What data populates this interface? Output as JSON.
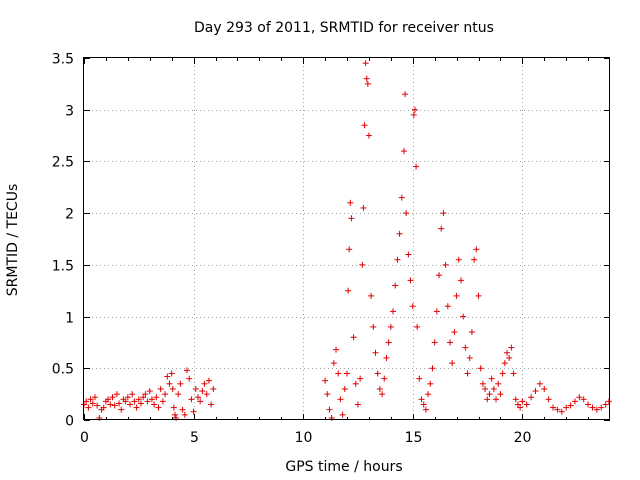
{
  "chart_data": {
    "type": "scatter",
    "title": "Day 293 of 2011, SRMTID for receiver ntus",
    "xlabel": "GPS time / hours",
    "ylabel": "SRMTID / TECUs",
    "xlim": [
      0,
      24
    ],
    "ylim": [
      0,
      3.5
    ],
    "grid": true,
    "marker": "+",
    "marker_color": "#e00000",
    "x_ticks": [
      0,
      5,
      10,
      15,
      20
    ],
    "x_tick_labels": [
      "0",
      "5",
      "10",
      "15",
      "20"
    ],
    "y_ticks": [
      0,
      0.5,
      1,
      1.5,
      2,
      2.5,
      3,
      3.5
    ],
    "y_tick_labels": [
      "0",
      "0.5",
      "1",
      "1.5",
      "2",
      "2.5",
      "3",
      "3.5"
    ],
    "series": [
      {
        "name": "SRMTID",
        "points": [
          [
            0.0,
            0.15
          ],
          [
            0.1,
            0.18
          ],
          [
            0.2,
            0.12
          ],
          [
            0.3,
            0.2
          ],
          [
            0.4,
            0.16
          ],
          [
            0.5,
            0.22
          ],
          [
            0.6,
            0.14
          ],
          [
            0.7,
            0.02
          ],
          [
            0.8,
            0.1
          ],
          [
            0.9,
            0.12
          ],
          [
            1.0,
            0.18
          ],
          [
            1.1,
            0.2
          ],
          [
            1.2,
            0.15
          ],
          [
            1.3,
            0.22
          ],
          [
            1.4,
            0.14
          ],
          [
            1.5,
            0.25
          ],
          [
            1.6,
            0.16
          ],
          [
            1.7,
            0.1
          ],
          [
            1.8,
            0.2
          ],
          [
            1.9,
            0.18
          ],
          [
            2.0,
            0.22
          ],
          [
            2.1,
            0.15
          ],
          [
            2.2,
            0.25
          ],
          [
            2.3,
            0.18
          ],
          [
            2.4,
            0.12
          ],
          [
            2.5,
            0.2
          ],
          [
            2.6,
            0.16
          ],
          [
            2.7,
            0.22
          ],
          [
            2.8,
            0.25
          ],
          [
            2.9,
            0.18
          ],
          [
            3.0,
            0.28
          ],
          [
            3.1,
            0.2
          ],
          [
            3.2,
            0.15
          ],
          [
            3.3,
            0.22
          ],
          [
            3.4,
            0.12
          ],
          [
            3.5,
            0.3
          ],
          [
            3.6,
            0.18
          ],
          [
            3.7,
            0.25
          ],
          [
            3.8,
            0.42
          ],
          [
            3.9,
            0.35
          ],
          [
            4.0,
            0.45
          ],
          [
            4.05,
            0.3
          ],
          [
            4.1,
            0.12
          ],
          [
            4.15,
            0.05
          ],
          [
            4.2,
            0.02
          ],
          [
            4.3,
            0.25
          ],
          [
            4.4,
            0.35
          ],
          [
            4.5,
            0.1
          ],
          [
            4.6,
            0.05
          ],
          [
            4.7,
            0.48
          ],
          [
            4.8,
            0.4
          ],
          [
            4.9,
            0.2
          ],
          [
            5.0,
            0.08
          ],
          [
            5.1,
            0.3
          ],
          [
            5.2,
            0.22
          ],
          [
            5.3,
            0.18
          ],
          [
            5.4,
            0.28
          ],
          [
            5.5,
            0.35
          ],
          [
            5.6,
            0.25
          ],
          [
            5.7,
            0.38
          ],
          [
            5.8,
            0.15
          ],
          [
            5.9,
            0.3
          ],
          [
            11.0,
            0.38
          ],
          [
            11.1,
            0.25
          ],
          [
            11.2,
            0.1
          ],
          [
            11.3,
            0.02
          ],
          [
            11.4,
            0.55
          ],
          [
            11.5,
            0.68
          ],
          [
            11.6,
            0.45
          ],
          [
            11.7,
            0.2
          ],
          [
            11.8,
            0.05
          ],
          [
            11.9,
            0.3
          ],
          [
            12.0,
            0.45
          ],
          [
            12.05,
            1.25
          ],
          [
            12.1,
            1.65
          ],
          [
            12.15,
            2.1
          ],
          [
            12.2,
            1.95
          ],
          [
            12.3,
            0.8
          ],
          [
            12.4,
            0.35
          ],
          [
            12.5,
            0.15
          ],
          [
            12.6,
            0.4
          ],
          [
            12.7,
            1.5
          ],
          [
            12.75,
            2.05
          ],
          [
            12.8,
            2.85
          ],
          [
            12.85,
            3.45
          ],
          [
            12.9,
            3.3
          ],
          [
            12.95,
            3.25
          ],
          [
            13.0,
            2.75
          ],
          [
            13.1,
            1.2
          ],
          [
            13.2,
            0.9
          ],
          [
            13.3,
            0.65
          ],
          [
            13.4,
            0.45
          ],
          [
            13.5,
            0.3
          ],
          [
            13.6,
            0.25
          ],
          [
            13.7,
            0.4
          ],
          [
            13.8,
            0.6
          ],
          [
            13.9,
            0.75
          ],
          [
            14.0,
            0.9
          ],
          [
            14.1,
            1.05
          ],
          [
            14.2,
            1.3
          ],
          [
            14.3,
            1.55
          ],
          [
            14.4,
            1.8
          ],
          [
            14.5,
            2.15
          ],
          [
            14.6,
            2.6
          ],
          [
            14.65,
            3.15
          ],
          [
            14.7,
            2.0
          ],
          [
            14.8,
            1.6
          ],
          [
            14.9,
            1.35
          ],
          [
            15.0,
            1.1
          ],
          [
            15.05,
            2.95
          ],
          [
            15.1,
            3.0
          ],
          [
            15.15,
            2.45
          ],
          [
            15.2,
            0.9
          ],
          [
            15.3,
            0.4
          ],
          [
            15.4,
            0.2
          ],
          [
            15.5,
            0.15
          ],
          [
            15.6,
            0.1
          ],
          [
            15.7,
            0.25
          ],
          [
            15.8,
            0.35
          ],
          [
            15.9,
            0.5
          ],
          [
            16.0,
            0.75
          ],
          [
            16.1,
            1.05
          ],
          [
            16.2,
            1.4
          ],
          [
            16.3,
            1.85
          ],
          [
            16.4,
            2.0
          ],
          [
            16.5,
            1.5
          ],
          [
            16.6,
            1.1
          ],
          [
            16.7,
            0.75
          ],
          [
            16.8,
            0.55
          ],
          [
            16.9,
            0.85
          ],
          [
            17.0,
            1.2
          ],
          [
            17.1,
            1.55
          ],
          [
            17.2,
            1.35
          ],
          [
            17.3,
            1.0
          ],
          [
            17.4,
            0.7
          ],
          [
            17.5,
            0.45
          ],
          [
            17.6,
            0.6
          ],
          [
            17.7,
            0.85
          ],
          [
            17.8,
            1.55
          ],
          [
            17.9,
            1.65
          ],
          [
            18.0,
            1.2
          ],
          [
            18.1,
            0.5
          ],
          [
            18.2,
            0.35
          ],
          [
            18.3,
            0.3
          ],
          [
            18.4,
            0.2
          ],
          [
            18.5,
            0.25
          ],
          [
            18.6,
            0.4
          ],
          [
            18.7,
            0.3
          ],
          [
            18.8,
            0.2
          ],
          [
            18.9,
            0.35
          ],
          [
            19.0,
            0.25
          ],
          [
            19.1,
            0.45
          ],
          [
            19.2,
            0.55
          ],
          [
            19.3,
            0.65
          ],
          [
            19.4,
            0.6
          ],
          [
            19.5,
            0.7
          ],
          [
            19.6,
            0.45
          ],
          [
            19.7,
            0.2
          ],
          [
            19.8,
            0.15
          ],
          [
            19.9,
            0.12
          ],
          [
            20.0,
            0.18
          ],
          [
            20.2,
            0.15
          ],
          [
            20.4,
            0.22
          ],
          [
            20.6,
            0.28
          ],
          [
            20.8,
            0.35
          ],
          [
            21.0,
            0.3
          ],
          [
            21.2,
            0.2
          ],
          [
            21.4,
            0.12
          ],
          [
            21.6,
            0.1
          ],
          [
            21.8,
            0.08
          ],
          [
            22.0,
            0.12
          ],
          [
            22.2,
            0.14
          ],
          [
            22.4,
            0.18
          ],
          [
            22.6,
            0.22
          ],
          [
            22.8,
            0.2
          ],
          [
            23.0,
            0.15
          ],
          [
            23.2,
            0.12
          ],
          [
            23.4,
            0.1
          ],
          [
            23.6,
            0.12
          ],
          [
            23.8,
            0.15
          ],
          [
            23.95,
            0.18
          ]
        ]
      }
    ]
  }
}
